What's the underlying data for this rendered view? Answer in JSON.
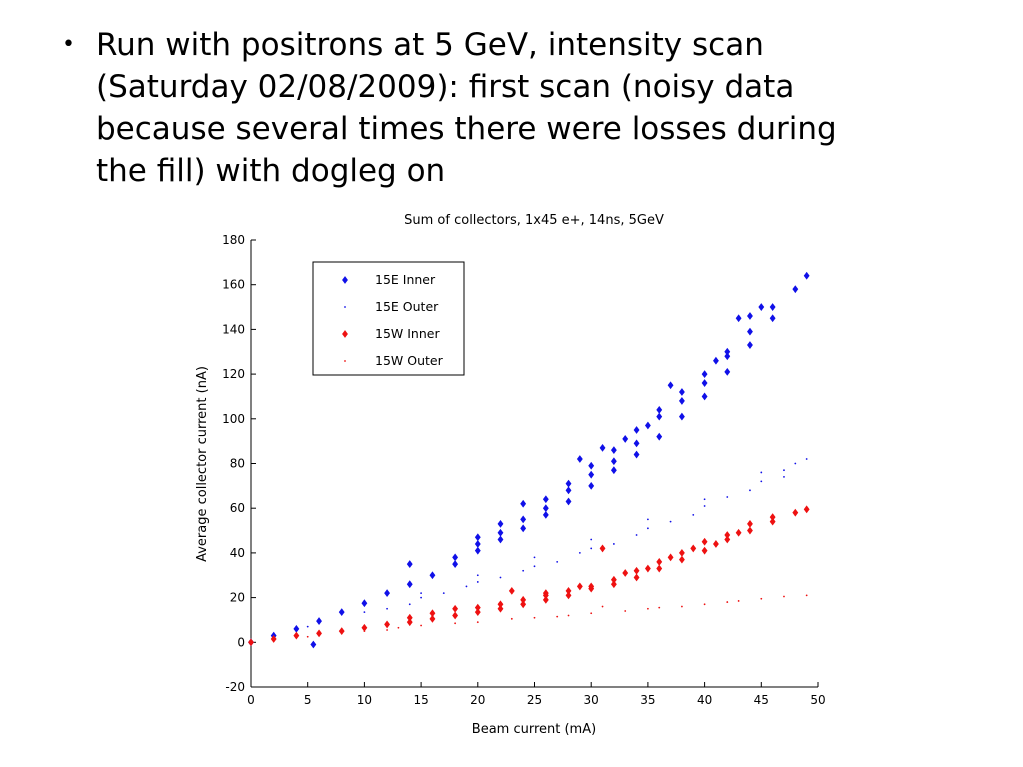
{
  "slide": {
    "bullet": "•",
    "lines": [
      "Run with positrons at 5 GeV, intensity scan",
      "(Saturday 02/08/2009): first scan (noisy data",
      "because several times there were losses during",
      "the fill) with dogleg on"
    ]
  },
  "chart_data": {
    "type": "scatter",
    "title": "Sum of collectors, 1x45 e+, 14ns, 5GeV",
    "xlabel": "Beam current (mA)",
    "ylabel": "Average collector current (nA)",
    "xlim": [
      0,
      50
    ],
    "ylim": [
      -20,
      180
    ],
    "x_ticks": [
      0,
      5,
      10,
      15,
      20,
      25,
      30,
      35,
      40,
      45,
      50
    ],
    "y_ticks": [
      -20,
      0,
      20,
      40,
      60,
      80,
      100,
      120,
      140,
      160,
      180
    ],
    "grid": false,
    "legend_position": "top-left",
    "series": [
      {
        "name": "15E Inner",
        "color": "#1010e8",
        "marker": "diamond",
        "points": [
          [
            0,
            0
          ],
          [
            2,
            3
          ],
          [
            4,
            6
          ],
          [
            6,
            9.5
          ],
          [
            8,
            13.5
          ],
          [
            10,
            17.5
          ],
          [
            12,
            22
          ],
          [
            14,
            26
          ],
          [
            16,
            30
          ],
          [
            18,
            35
          ],
          [
            20,
            41
          ],
          [
            22,
            46
          ],
          [
            24,
            51
          ],
          [
            26,
            57
          ],
          [
            28,
            63
          ],
          [
            30,
            70
          ],
          [
            32,
            77
          ],
          [
            34,
            84
          ],
          [
            36,
            92
          ],
          [
            38,
            101
          ],
          [
            40,
            110
          ],
          [
            42,
            121
          ],
          [
            44,
            133
          ],
          [
            46,
            145
          ],
          [
            48,
            158
          ],
          [
            49,
            164
          ],
          [
            18,
            38
          ],
          [
            20,
            44
          ],
          [
            22,
            49
          ],
          [
            24,
            55
          ],
          [
            26,
            60
          ],
          [
            28,
            68
          ],
          [
            30,
            75
          ],
          [
            32,
            81
          ],
          [
            34,
            89
          ],
          [
            36,
            101
          ],
          [
            38,
            108
          ],
          [
            40,
            116
          ],
          [
            42,
            128
          ],
          [
            44,
            139
          ],
          [
            46,
            150
          ],
          [
            20,
            47
          ],
          [
            22,
            53
          ],
          [
            24,
            62
          ],
          [
            26,
            64
          ],
          [
            28,
            71
          ],
          [
            30,
            79
          ],
          [
            32,
            86
          ],
          [
            34,
            95
          ],
          [
            36,
            104
          ],
          [
            38,
            112
          ],
          [
            40,
            120
          ],
          [
            42,
            130
          ],
          [
            44,
            146
          ],
          [
            45,
            150
          ],
          [
            14,
            35
          ],
          [
            29,
            82
          ],
          [
            31,
            87
          ],
          [
            33,
            91
          ],
          [
            35,
            97
          ],
          [
            37,
            115
          ],
          [
            41,
            126
          ],
          [
            43,
            145
          ],
          [
            5.5,
            -1
          ]
        ]
      },
      {
        "name": "15E Outer",
        "color": "#1010e8",
        "marker": "point",
        "points": [
          [
            0,
            0
          ],
          [
            5,
            7
          ],
          [
            10,
            13.5
          ],
          [
            15,
            20
          ],
          [
            20,
            27
          ],
          [
            25,
            34
          ],
          [
            30,
            42
          ],
          [
            35,
            51
          ],
          [
            40,
            61
          ],
          [
            45,
            72
          ],
          [
            49,
            82
          ],
          [
            12,
            15
          ],
          [
            17,
            22
          ],
          [
            22,
            29
          ],
          [
            27,
            36
          ],
          [
            32,
            44
          ],
          [
            37,
            54
          ],
          [
            42,
            65
          ],
          [
            47,
            77
          ],
          [
            15,
            22
          ],
          [
            20,
            30
          ],
          [
            25,
            38
          ],
          [
            30,
            46
          ],
          [
            35,
            55
          ],
          [
            40,
            64
          ],
          [
            45,
            76
          ],
          [
            48,
            80
          ],
          [
            14,
            17
          ],
          [
            19,
            25
          ],
          [
            24,
            32
          ],
          [
            29,
            40
          ],
          [
            34,
            48
          ],
          [
            39,
            57
          ],
          [
            44,
            68
          ],
          [
            47,
            74
          ]
        ]
      },
      {
        "name": "15W Inner",
        "color": "#ee1111",
        "marker": "diamond",
        "points": [
          [
            0,
            0
          ],
          [
            2,
            1.5
          ],
          [
            4,
            3
          ],
          [
            6,
            4
          ],
          [
            8,
            5
          ],
          [
            10,
            6.5
          ],
          [
            12,
            8
          ],
          [
            14,
            9
          ],
          [
            16,
            10.5
          ],
          [
            18,
            12
          ],
          [
            20,
            13.5
          ],
          [
            22,
            15
          ],
          [
            24,
            17
          ],
          [
            26,
            19
          ],
          [
            28,
            21
          ],
          [
            30,
            24
          ],
          [
            32,
            26
          ],
          [
            34,
            29
          ],
          [
            36,
            33
          ],
          [
            38,
            37
          ],
          [
            40,
            41
          ],
          [
            42,
            46
          ],
          [
            44,
            50
          ],
          [
            46,
            54
          ],
          [
            48,
            58
          ],
          [
            49,
            59.5
          ],
          [
            14,
            11
          ],
          [
            16,
            13
          ],
          [
            18,
            15
          ],
          [
            20,
            15.5
          ],
          [
            22,
            17
          ],
          [
            24,
            19
          ],
          [
            26,
            22
          ],
          [
            28,
            23
          ],
          [
            30,
            25
          ],
          [
            32,
            28
          ],
          [
            34,
            32
          ],
          [
            36,
            36
          ],
          [
            38,
            40
          ],
          [
            40,
            45
          ],
          [
            42,
            48
          ],
          [
            44,
            53
          ],
          [
            46,
            56
          ],
          [
            23,
            23
          ],
          [
            26,
            21
          ],
          [
            29,
            25
          ],
          [
            31,
            42
          ],
          [
            33,
            31
          ],
          [
            35,
            33
          ],
          [
            37,
            38
          ],
          [
            39,
            42
          ],
          [
            41,
            44
          ],
          [
            43,
            49
          ]
        ]
      },
      {
        "name": "15W Outer",
        "color": "#ee1111",
        "marker": "point",
        "points": [
          [
            0,
            0
          ],
          [
            5,
            2.5
          ],
          [
            10,
            5
          ],
          [
            15,
            7.5
          ],
          [
            20,
            9
          ],
          [
            25,
            11
          ],
          [
            30,
            13
          ],
          [
            35,
            15
          ],
          [
            40,
            17
          ],
          [
            45,
            19.5
          ],
          [
            49,
            21
          ],
          [
            8,
            4
          ],
          [
            13,
            6.5
          ],
          [
            18,
            8.5
          ],
          [
            23,
            10.5
          ],
          [
            28,
            12
          ],
          [
            33,
            14
          ],
          [
            38,
            16
          ],
          [
            43,
            18.5
          ],
          [
            47,
            20.5
          ],
          [
            31,
            16
          ],
          [
            12,
            5.5
          ],
          [
            27,
            11.5
          ],
          [
            36,
            15.5
          ],
          [
            42,
            18
          ]
        ]
      }
    ]
  }
}
